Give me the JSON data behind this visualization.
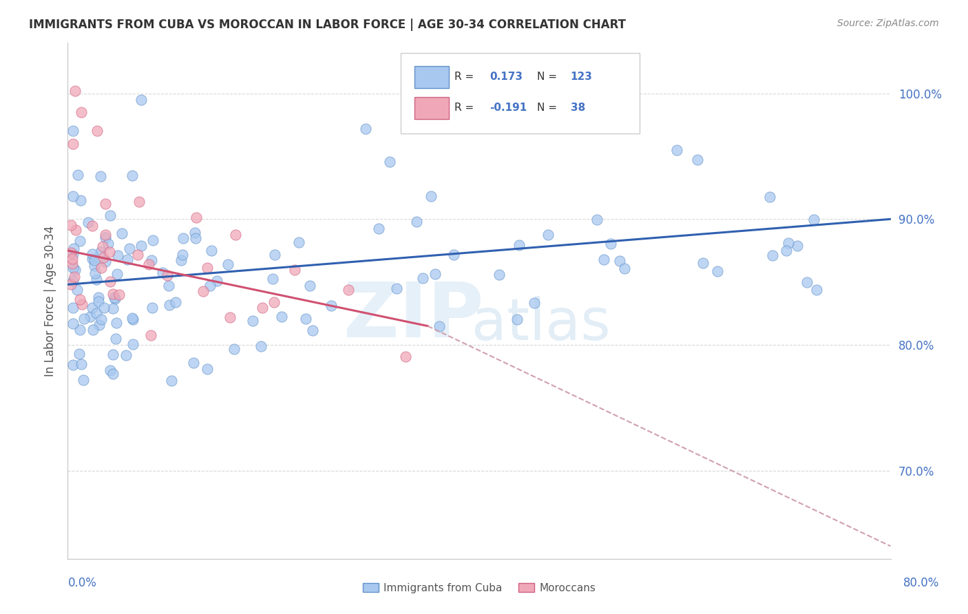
{
  "title": "IMMIGRANTS FROM CUBA VS MOROCCAN IN LABOR FORCE | AGE 30-34 CORRELATION CHART",
  "source_text": "Source: ZipAtlas.com",
  "ylabel": "In Labor Force | Age 30-34",
  "x_label_bottom_left": "0.0%",
  "x_label_bottom_right": "80.0%",
  "xlim": [
    0.0,
    80.0
  ],
  "ylim": [
    63.0,
    104.0
  ],
  "yticks": [
    70.0,
    80.0,
    90.0,
    100.0
  ],
  "ytick_labels": [
    "70.0%",
    "80.0%",
    "90.0%",
    "100.0%"
  ],
  "background_color": "#ffffff",
  "grid_color": "#d8d8d8",
  "blue_color": "#a8c8f0",
  "pink_color": "#f0a8b8",
  "blue_edge": "#6090c8",
  "pink_edge": "#d06080",
  "blue_line_color": "#3060b0",
  "pink_line_color": "#d05070",
  "gray_dash_color": "#d0a0b0",
  "legend_R_blue": "0.173",
  "legend_N_blue": "123",
  "legend_R_pink": "-0.191",
  "legend_N_pink": "38",
  "cuba_trend_x0": 0.0,
  "cuba_trend_y0": 84.8,
  "cuba_trend_x1": 80.0,
  "cuba_trend_y1": 90.0,
  "morocco_trend_x0": 0.0,
  "morocco_trend_y0": 87.5,
  "morocco_trend_x1": 35.0,
  "morocco_trend_y1": 81.5,
  "morocco_dash_x0": 35.0,
  "morocco_dash_y0": 81.5,
  "morocco_dash_x1": 80.0,
  "morocco_dash_y1": 64.0
}
